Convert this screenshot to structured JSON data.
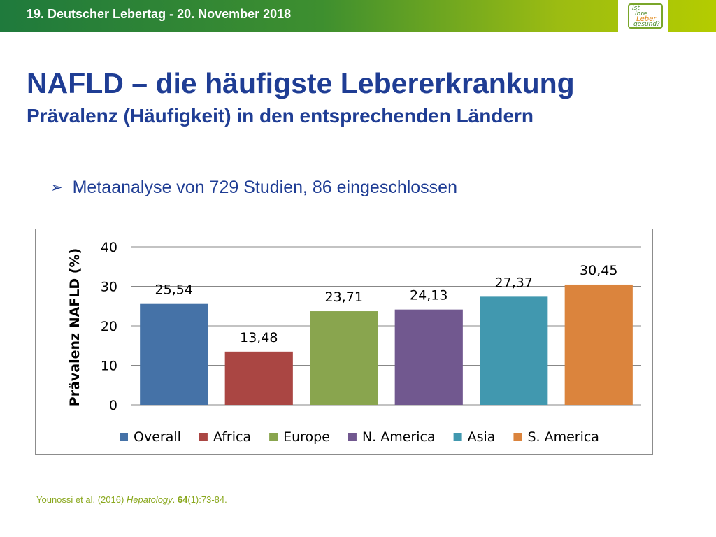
{
  "header": {
    "event": "19. Deutscher Lebertag - 20. November 2018",
    "logo": {
      "line1": "Ist",
      "line2": "Ihre",
      "line3": "Leber",
      "line4": "gesund?"
    },
    "colors": {
      "bar_start": "#1f7a3c",
      "bar_end": "#b4cc00"
    }
  },
  "slide": {
    "title": "NAFLD – die häufigste Lebererkrankung",
    "subtitle": "Prävalenz (Häufigkeit) in den entsprechenden Ländern",
    "bullet": "Metaanalyse von 729 Studien, 86 eingeschlossen",
    "bullet_icon": "arrow-bullet-icon"
  },
  "chart_data": {
    "type": "bar",
    "categories": [
      "Overall",
      "Africa",
      "Europe",
      "N. America",
      "Asia",
      "S. America"
    ],
    "values": [
      25.54,
      13.48,
      23.71,
      24.13,
      27.37,
      30.45
    ],
    "data_labels": [
      "25,54",
      "13,48",
      "23,71",
      "24,13",
      "27,37",
      "30,45"
    ],
    "colors": [
      "#4572a7",
      "#aa4643",
      "#89a54e",
      "#71588f",
      "#4198af",
      "#db843d"
    ],
    "ylabel": "Prävalenz NAFLD (%)",
    "ylim": [
      0,
      40
    ],
    "yticks": [
      0,
      10,
      20,
      30,
      40
    ],
    "ytick_labels": [
      "0",
      "10",
      "20",
      "30",
      "40"
    ],
    "grid": true,
    "legend": "bottom"
  },
  "citation": {
    "authors": "Younossi et al.  (2016) ",
    "journal": "Hepatology",
    "sep": ". ",
    "volume": "64",
    "rest": "(1):73-84."
  }
}
